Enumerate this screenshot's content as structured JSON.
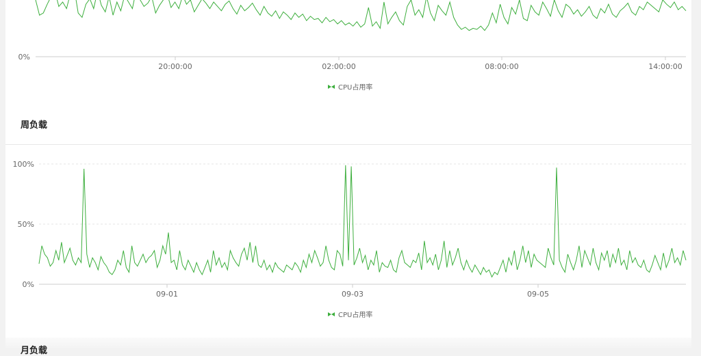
{
  "sections": {
    "weekly_title": "周负载",
    "next_title": "月负载"
  },
  "colors": {
    "series": "#3cae3c",
    "grid": "#e6e6e6",
    "axis": "#cccccc"
  },
  "chart_data": [
    {
      "type": "line",
      "x_ticks": [
        "20:00:00",
        "02:00:00",
        "08:00:00",
        "14:00:00"
      ],
      "y_ticks": [
        "0%"
      ],
      "legend": "CPU占用率",
      "series": [
        {
          "name": "CPU占用率",
          "values": [
            52,
            38,
            40,
            48,
            55,
            60,
            46,
            50,
            44,
            58,
            62,
            40,
            36,
            48,
            53,
            44,
            60,
            47,
            41,
            55,
            38,
            50,
            42,
            56,
            50,
            44,
            61,
            52,
            46,
            49,
            55,
            40,
            47,
            52,
            57,
            45,
            50,
            44,
            56,
            48,
            52,
            41,
            47,
            53,
            49,
            44,
            50,
            46,
            42,
            48,
            51,
            44,
            39,
            47,
            42,
            45,
            49,
            43,
            38,
            46,
            40,
            37,
            42,
            35,
            41,
            38,
            34,
            40,
            36,
            39,
            33,
            37,
            34,
            35,
            31,
            36,
            32,
            34,
            30,
            33,
            29,
            31,
            28,
            32,
            27,
            30,
            45,
            28,
            32,
            26,
            50,
            30,
            36,
            41,
            33,
            29,
            46,
            52,
            38,
            43,
            36,
            55,
            40,
            33,
            47,
            42,
            38,
            50,
            36,
            29,
            25,
            27,
            24,
            26,
            25,
            28,
            24,
            29,
            40,
            31,
            48,
            36,
            30,
            45,
            39,
            52,
            35,
            33,
            47,
            41,
            38,
            50,
            44,
            37,
            52,
            42,
            36,
            48,
            45,
            39,
            43,
            37,
            41,
            46,
            38,
            35,
            44,
            40,
            48,
            39,
            36,
            42,
            45,
            49,
            41,
            38,
            46,
            43,
            50,
            47,
            44,
            41,
            52,
            48,
            45,
            50,
            43,
            46,
            42
          ]
        }
      ]
    },
    {
      "type": "line",
      "x_ticks": [
        "09-01",
        "09-03",
        "09-05"
      ],
      "y_ticks": [
        "100%",
        "50%",
        "0%"
      ],
      "ylim": [
        0,
        100
      ],
      "legend": "CPU占用率",
      "series": [
        {
          "name": "CPU占用率",
          "values": [
            17,
            32,
            25,
            22,
            15,
            18,
            28,
            20,
            35,
            18,
            24,
            30,
            20,
            16,
            22,
            18,
            96,
            25,
            14,
            22,
            18,
            12,
            23,
            18,
            15,
            10,
            8,
            12,
            20,
            16,
            28,
            14,
            10,
            32,
            18,
            15,
            20,
            25,
            18,
            22,
            24,
            28,
            14,
            20,
            32,
            25,
            43,
            18,
            20,
            12,
            28,
            16,
            12,
            20,
            15,
            10,
            18,
            12,
            8,
            14,
            20,
            10,
            28,
            16,
            22,
            14,
            18,
            12,
            28,
            22,
            18,
            15,
            25,
            30,
            20,
            35,
            18,
            32,
            16,
            14,
            20,
            12,
            16,
            10,
            18,
            14,
            12,
            10,
            16,
            14,
            12,
            18,
            15,
            10,
            20,
            14,
            25,
            18,
            28,
            22,
            15,
            18,
            32,
            20,
            14,
            12,
            28,
            25,
            15,
            99,
            20,
            98,
            16,
            22,
            30,
            18,
            24,
            12,
            20,
            16,
            28,
            10,
            18,
            15,
            14,
            20,
            12,
            10,
            22,
            28,
            18,
            16,
            14,
            20,
            18,
            26,
            12,
            36,
            18,
            22,
            16,
            25,
            12,
            20,
            36,
            14,
            28,
            16,
            22,
            30,
            18,
            12,
            20,
            14,
            10,
            16,
            12,
            8,
            14,
            10,
            12,
            6,
            10,
            8,
            14,
            20,
            10,
            22,
            16,
            28,
            12,
            20,
            32,
            18,
            28,
            14,
            25,
            20,
            18,
            16,
            14,
            30,
            22,
            16,
            97,
            20,
            14,
            10,
            25,
            18,
            12,
            20,
            32,
            14,
            28,
            22,
            16,
            30,
            18,
            12,
            26,
            20,
            28,
            14,
            25,
            18,
            30,
            16,
            20,
            12,
            28,
            18,
            22,
            16,
            14,
            20,
            12,
            10,
            16,
            24,
            18,
            12,
            26,
            14,
            20,
            30,
            18,
            22,
            16,
            28,
            20
          ]
        }
      ]
    }
  ]
}
